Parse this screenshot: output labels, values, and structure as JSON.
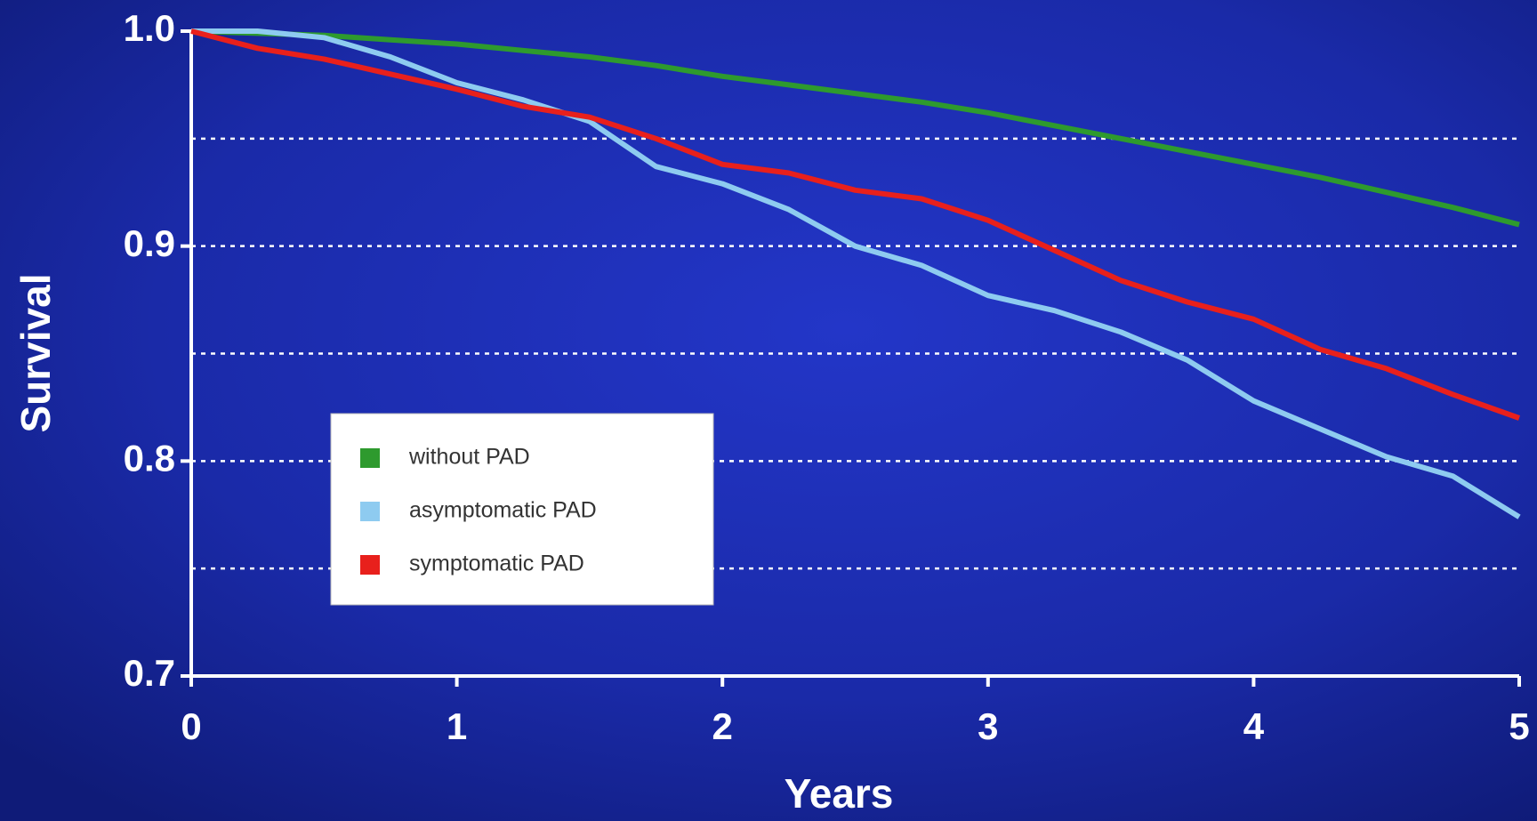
{
  "chart_data": {
    "type": "line",
    "x_label": "Years",
    "y_label": "Survival",
    "x": [
      0,
      0.25,
      0.5,
      0.75,
      1,
      1.25,
      1.5,
      1.75,
      2,
      2.25,
      2.5,
      2.75,
      3,
      3.25,
      3.5,
      3.75,
      4,
      4.25,
      4.5,
      4.75,
      5
    ],
    "series": [
      {
        "name": "without PAD",
        "color": "#2e9a2e",
        "values": [
          1.0,
          0.999,
          0.998,
          0.996,
          0.994,
          0.991,
          0.988,
          0.984,
          0.979,
          0.975,
          0.971,
          0.967,
          0.962,
          0.956,
          0.95,
          0.944,
          0.938,
          0.932,
          0.925,
          0.918,
          0.91
        ]
      },
      {
        "name": "asymptomatic PAD",
        "color": "#8ecbf0",
        "values": [
          1.0,
          1.0,
          0.997,
          0.988,
          0.976,
          0.968,
          0.958,
          0.937,
          0.929,
          0.917,
          0.9,
          0.891,
          0.877,
          0.87,
          0.86,
          0.847,
          0.828,
          0.815,
          0.802,
          0.793,
          0.774
        ]
      },
      {
        "name": "symptomatic PAD",
        "color": "#e8201c",
        "values": [
          1.0,
          0.992,
          0.987,
          0.98,
          0.973,
          0.965,
          0.96,
          0.95,
          0.938,
          0.934,
          0.926,
          0.922,
          0.912,
          0.898,
          0.884,
          0.874,
          0.866,
          0.852,
          0.843,
          0.831,
          0.82
        ]
      }
    ],
    "xlim": [
      0,
      5
    ],
    "xticks": [
      0,
      1,
      2,
      3,
      4,
      5
    ],
    "ylim": [
      0.7,
      1.0
    ],
    "yticks": [
      0.7,
      0.8,
      0.9,
      {
        "value": 1.0,
        "label": "1.0"
      }
    ],
    "ygrid": [
      0.75,
      0.8,
      0.85,
      0.9,
      0.95
    ]
  }
}
